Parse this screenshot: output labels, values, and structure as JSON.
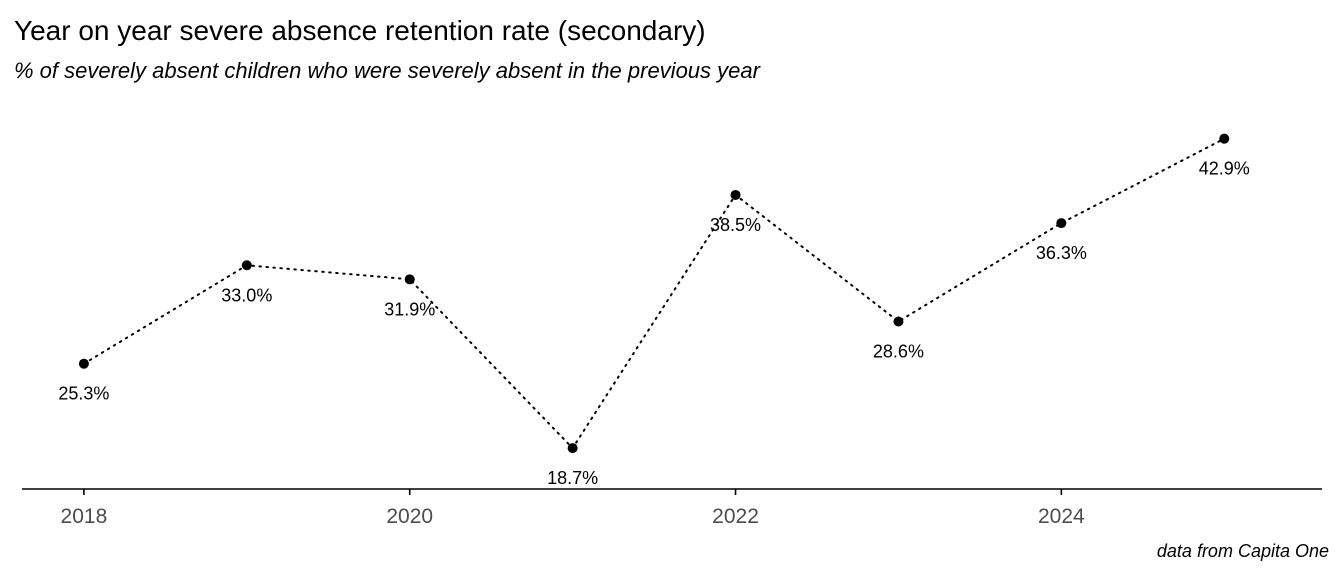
{
  "chart_data": {
    "type": "line",
    "title": "Year on year severe absence retention rate (secondary)",
    "subtitle": "% of severely absent children who were severely absent in the previous year",
    "caption": "data from Capita One",
    "xlabel": "",
    "ylabel": "",
    "x": [
      2018,
      2019,
      2020,
      2021,
      2022,
      2023,
      2024,
      2025
    ],
    "values": [
      25.3,
      33.0,
      31.9,
      18.7,
      38.5,
      28.6,
      36.3,
      42.9
    ],
    "data_labels": [
      "25.3%",
      "33.0%",
      "31.9%",
      "18.7%",
      "38.5%",
      "28.6%",
      "36.3%",
      "42.9%"
    ],
    "x_ticks": [
      2018,
      2020,
      2022,
      2024
    ],
    "x_tick_labels": [
      "2018",
      "2020",
      "2022",
      "2024"
    ],
    "xlim": [
      2017.62,
      2025.6
    ],
    "ylim": [
      15.5,
      45.3
    ],
    "y_axis_visible": false,
    "grid": false,
    "line_style": "dotted",
    "marker": "circle",
    "color": "#000000",
    "legend": "none"
  }
}
